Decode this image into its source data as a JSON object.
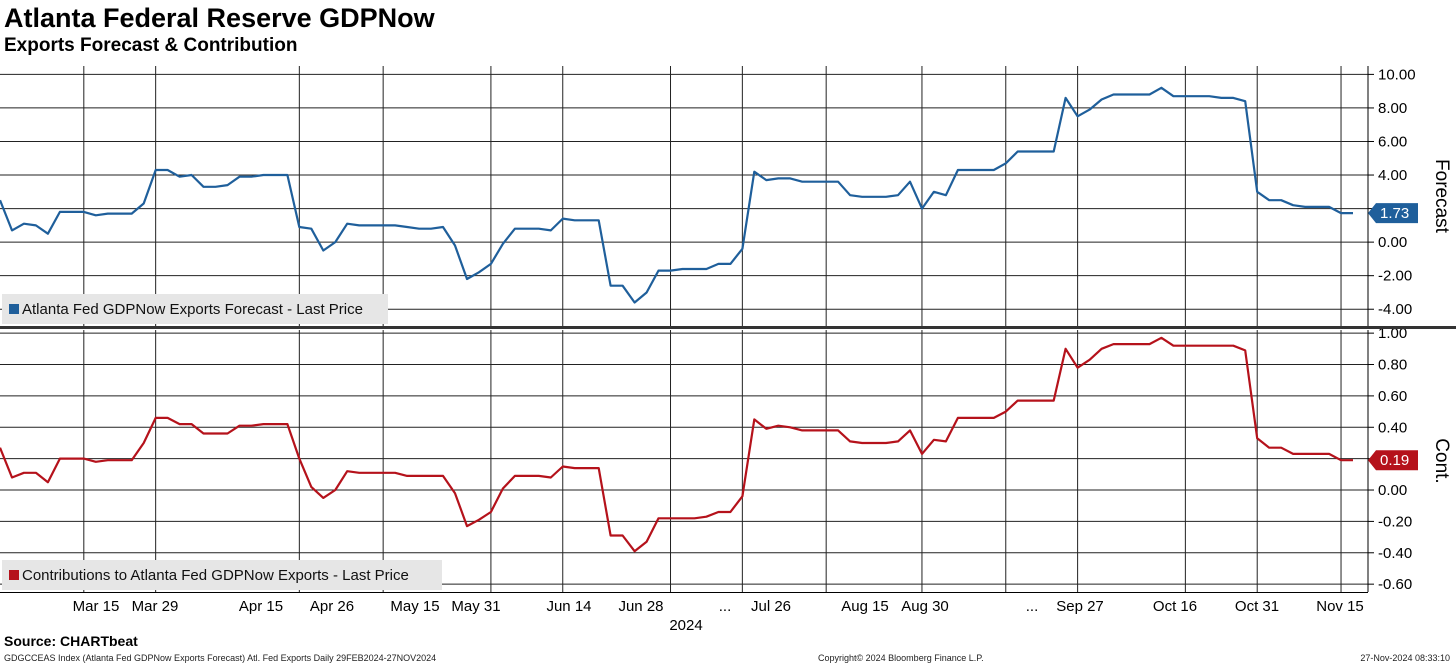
{
  "title": "Atlanta Federal Reserve GDPNow",
  "subtitle": "Exports Forecast & Contribution",
  "footer": {
    "source": "Source: CHARTbeat",
    "index_line": "GDGCCEAS Index (Atlanta Fed GDPNow Exports Forecast) Atl. Fed Exports  Daily 29FEB2024-27NOV2024",
    "copyright": "Copyright© 2024 Bloomberg Finance L.P.",
    "timestamp": "27-Nov-2024 08:33:10"
  },
  "chart_data": [
    {
      "type": "line",
      "ylabel": "Forecast",
      "ylim": [
        -5.0,
        10.5
      ],
      "yticks": [
        "10.00",
        "8.00",
        "6.00",
        "4.00",
        "2.00",
        "0.00",
        "-2.00",
        "-4.00"
      ],
      "tick_values": [
        10,
        8,
        6,
        4,
        2,
        0,
        -2,
        -4
      ],
      "grid": true,
      "legend_position": "bottom-left",
      "last_value_label": "1.73",
      "colors": {
        "series": "#1f5f9b",
        "badge": "#1f5f9b"
      },
      "series": [
        {
          "name": "Atlanta Fed GDPNow Exports Forecast - Last Price",
          "values": [
            2.5,
            0.7,
            1.1,
            1.0,
            0.5,
            1.8,
            1.8,
            1.8,
            1.6,
            1.7,
            1.7,
            1.7,
            2.3,
            4.3,
            4.3,
            3.9,
            4.0,
            3.3,
            3.3,
            3.4,
            3.9,
            3.9,
            4.0,
            4.0,
            4.0,
            0.9,
            0.8,
            -0.5,
            0.0,
            1.1,
            1.0,
            1.0,
            1.0,
            1.0,
            0.9,
            0.8,
            0.8,
            0.9,
            -0.2,
            -2.2,
            -1.8,
            -1.3,
            -0.1,
            0.8,
            0.8,
            0.8,
            0.7,
            1.4,
            1.3,
            1.3,
            1.3,
            -2.6,
            -2.6,
            -3.6,
            -3.0,
            -1.7,
            -1.7,
            -1.6,
            -1.6,
            -1.6,
            -1.3,
            -1.3,
            -0.4,
            4.2,
            3.7,
            3.8,
            3.8,
            3.6,
            3.6,
            3.6,
            3.6,
            2.8,
            2.7,
            2.7,
            2.7,
            2.8,
            3.6,
            2.0,
            3.0,
            2.8,
            4.3,
            4.3,
            4.3,
            4.3,
            4.7,
            5.4,
            5.4,
            5.4,
            5.4,
            8.6,
            7.5,
            7.9,
            8.5,
            8.8,
            8.8,
            8.8,
            8.8,
            9.2,
            8.7,
            8.7,
            8.7,
            8.7,
            8.6,
            8.6,
            8.4,
            3.0,
            2.5,
            2.5,
            2.2,
            2.1,
            2.1,
            2.1,
            1.73,
            1.73
          ]
        }
      ]
    },
    {
      "type": "line",
      "ylabel": "Cont.",
      "ylim": [
        -0.65,
        1.02
      ],
      "yticks": [
        "1.00",
        "0.80",
        "0.60",
        "0.40",
        "0.20",
        "0.00",
        "-0.20",
        "-0.40",
        "-0.60"
      ],
      "tick_values": [
        1.0,
        0.8,
        0.6,
        0.4,
        0.2,
        0.0,
        -0.2,
        -0.4,
        -0.6
      ],
      "grid": true,
      "legend_position": "bottom-left",
      "last_value_label": "0.19",
      "colors": {
        "series": "#b5121b",
        "badge": "#b5121b"
      },
      "series": [
        {
          "name": "Contributions to Atlanta Fed GDPNow Exports - Last Price",
          "values": [
            0.27,
            0.08,
            0.11,
            0.11,
            0.05,
            0.2,
            0.2,
            0.2,
            0.18,
            0.19,
            0.19,
            0.19,
            0.3,
            0.46,
            0.46,
            0.42,
            0.42,
            0.36,
            0.36,
            0.36,
            0.41,
            0.41,
            0.42,
            0.42,
            0.42,
            0.2,
            0.02,
            -0.05,
            0.0,
            0.12,
            0.11,
            0.11,
            0.11,
            0.11,
            0.09,
            0.09,
            0.09,
            0.09,
            -0.02,
            -0.23,
            -0.19,
            -0.14,
            0.01,
            0.09,
            0.09,
            0.09,
            0.08,
            0.15,
            0.14,
            0.14,
            0.14,
            -0.29,
            -0.29,
            -0.39,
            -0.33,
            -0.18,
            -0.18,
            -0.18,
            -0.18,
            -0.17,
            -0.14,
            -0.14,
            -0.04,
            0.45,
            0.39,
            0.41,
            0.4,
            0.38,
            0.38,
            0.38,
            0.38,
            0.31,
            0.3,
            0.3,
            0.3,
            0.31,
            0.38,
            0.23,
            0.32,
            0.31,
            0.46,
            0.46,
            0.46,
            0.46,
            0.5,
            0.57,
            0.57,
            0.57,
            0.57,
            0.9,
            0.78,
            0.83,
            0.9,
            0.93,
            0.93,
            0.93,
            0.93,
            0.97,
            0.92,
            0.92,
            0.92,
            0.92,
            0.92,
            0.92,
            0.89,
            0.33,
            0.27,
            0.27,
            0.23,
            0.23,
            0.23,
            0.23,
            0.19,
            0.19
          ]
        }
      ]
    }
  ],
  "x_axis": {
    "tick_labels": [
      "Mar 15",
      "Mar 29",
      "Apr 15",
      "Apr 26",
      "May 15",
      "May 31",
      "Jun 14",
      "Jun 28",
      "...",
      "Jul 26",
      "Aug 15",
      "Aug 30",
      "...",
      "Sep 27",
      "Oct 16",
      "Oct 31",
      "Nov 15"
    ],
    "year_label": "2024",
    "grid_at_index": [
      7,
      13,
      25,
      32,
      41,
      47,
      56,
      62,
      69,
      77,
      84,
      90,
      99,
      105,
      112
    ]
  }
}
